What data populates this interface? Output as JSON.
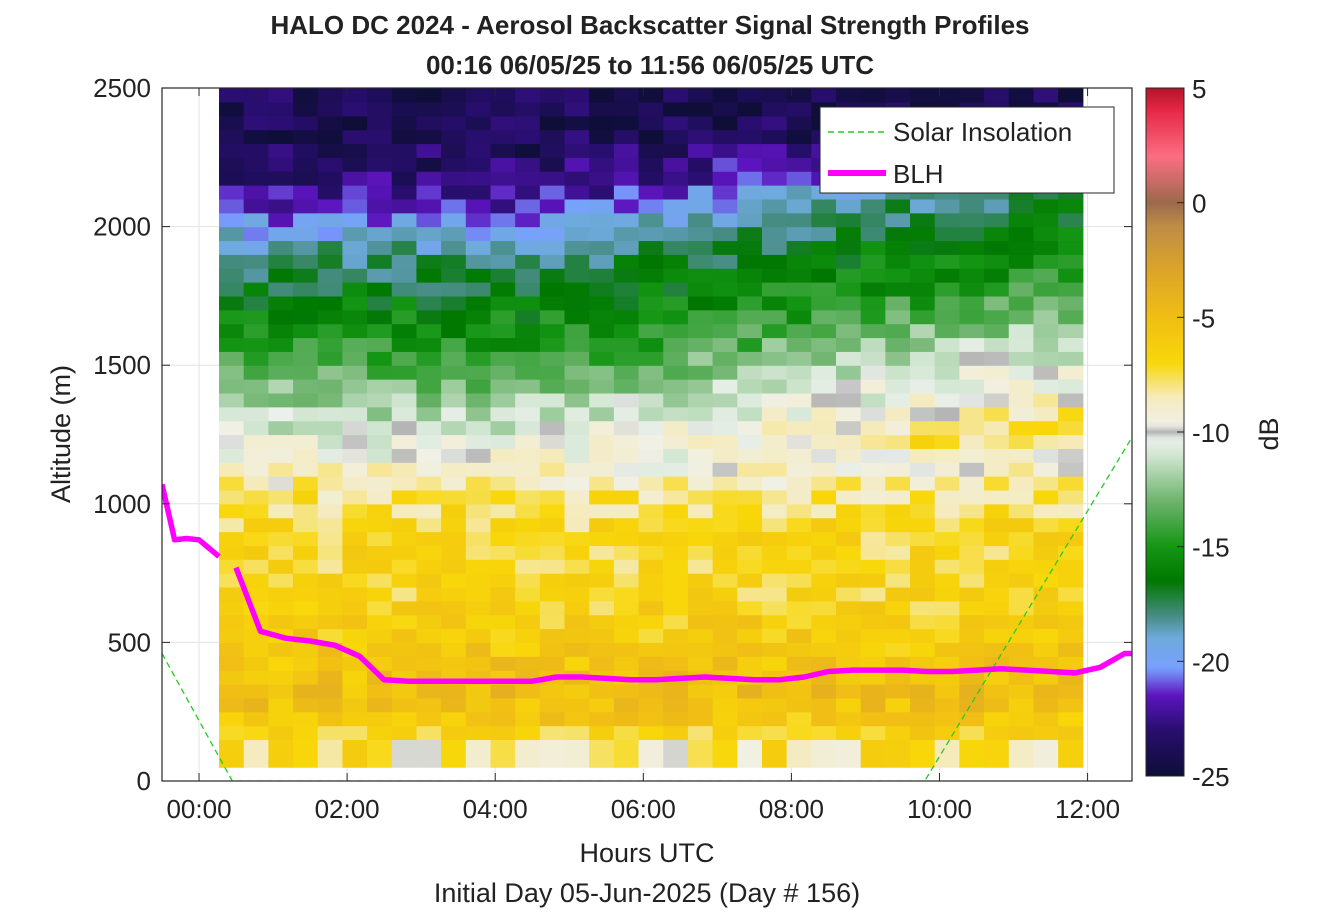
{
  "chart_data": {
    "type": "heatmap",
    "title": "HALO DC 2024 - Aerosol Backscatter Signal Strength Profiles",
    "subtitle": "00:16 06/05/25 to 11:56 06/05/25  UTC",
    "xlabel": "Hours UTC",
    "ylabel": "Altitude (m)",
    "footer": "Initial Day 05-Jun-2025 (Day # 156)",
    "colorbar_label": "dB",
    "xlim": [
      -0.5,
      12.6
    ],
    "ylim": [
      0,
      2500
    ],
    "x_ticks": [
      0,
      2,
      4,
      6,
      8,
      10,
      12
    ],
    "x_tick_labels": [
      "00:00",
      "02:00",
      "04:00",
      "06:00",
      "08:00",
      "10:00",
      "12:00"
    ],
    "y_ticks": [
      0,
      500,
      1000,
      1500,
      2000,
      2500
    ],
    "y_tick_labels": [
      "0",
      "500",
      "1000",
      "1500",
      "2000",
      "2500"
    ],
    "color_range": [
      -25,
      5
    ],
    "color_ticks": [
      -25,
      -20,
      -15,
      -10,
      -5,
      0,
      5
    ],
    "color_tick_labels": [
      "-25",
      "-20",
      "-15",
      "-10",
      "-5",
      "0",
      "5"
    ],
    "grid": true,
    "legend_position": "top-right",
    "legend": [
      {
        "label": "Solar Insolation",
        "color": "#22cc22",
        "style": "dashed"
      },
      {
        "label": "BLH",
        "color": "#ff00ff",
        "style": "solid"
      }
    ],
    "heatmap": {
      "x_start": 0.27,
      "x_step": 0.3333,
      "columns": 35,
      "y_start": 100,
      "y_step": 50,
      "rows": 48,
      "profile_points": [
        [
          0,
          -8
        ],
        [
          80,
          -9
        ],
        [
          120,
          -8
        ],
        [
          150,
          -7
        ],
        [
          300,
          -5
        ],
        [
          500,
          -6
        ],
        [
          700,
          -7
        ],
        [
          900,
          -7
        ],
        [
          1050,
          -8
        ],
        [
          1100,
          -9
        ],
        [
          1200,
          -10
        ],
        [
          1300,
          -11
        ],
        [
          1400,
          -12.5
        ],
        [
          1500,
          -14
        ],
        [
          1600,
          -15
        ],
        [
          1700,
          -16
        ],
        [
          1800,
          -17
        ],
        [
          1900,
          -18
        ],
        [
          2000,
          -20
        ],
        [
          2100,
          -22
        ],
        [
          2250,
          -23.5
        ],
        [
          2400,
          -24
        ],
        [
          2500,
          -24
        ]
      ]
    },
    "series": [
      {
        "name": "Solar Insolation",
        "type": "line",
        "color": "#22cc22",
        "style": "dashed",
        "x": [
          -0.5,
          0.45,
          9.8,
          12.6
        ],
        "y": [
          460,
          0,
          0,
          1240
        ]
      },
      {
        "name": "BLH",
        "type": "line",
        "color": "#ff00ff",
        "style": "solid",
        "segments": [
          {
            "x": [
              -0.5,
              -0.33,
              -0.17,
              0.0,
              0.27
            ],
            "y": [
              1070,
              870,
              875,
              870,
              810
            ]
          },
          {
            "x": [
              0.5,
              0.83,
              1.17,
              1.5,
              1.83,
              2.17,
              2.5,
              2.83,
              3.17,
              3.5,
              3.83,
              4.17,
              4.5,
              4.83,
              5.17,
              5.5,
              5.83,
              6.17,
              6.5,
              6.83,
              7.17,
              7.5,
              7.83,
              8.17,
              8.5,
              8.83,
              9.17,
              9.5,
              9.83,
              10.17,
              10.5,
              10.83,
              11.17,
              11.5,
              11.83,
              12.17,
              12.5,
              12.6
            ],
            "y": [
              770,
              540,
              515,
              505,
              490,
              450,
              365,
              360,
              360,
              360,
              360,
              360,
              360,
              375,
              375,
              370,
              365,
              365,
              370,
              375,
              370,
              365,
              365,
              375,
              395,
              400,
              400,
              400,
              395,
              395,
              400,
              405,
              400,
              395,
              390,
              410,
              460,
              460
            ]
          }
        ]
      }
    ]
  }
}
